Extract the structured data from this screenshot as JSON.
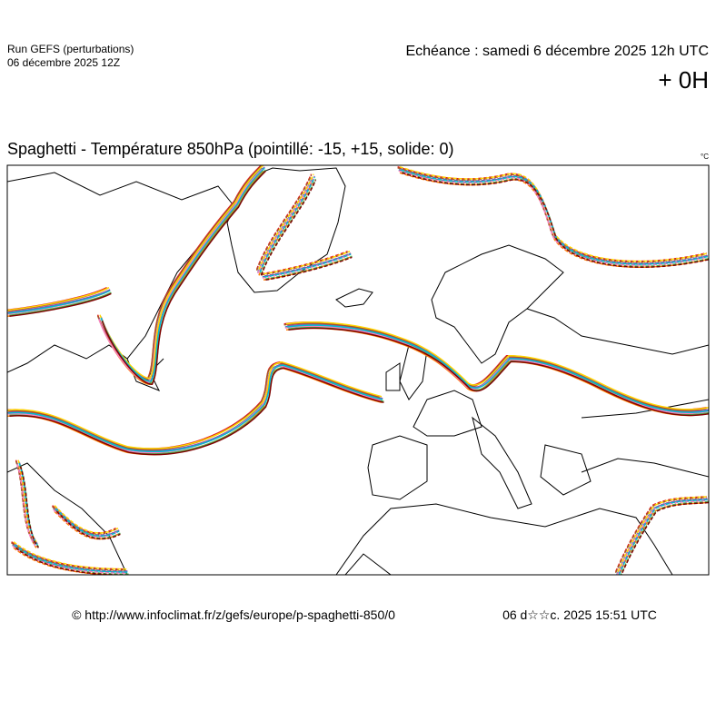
{
  "header": {
    "run": "Run GEFS (perturbations)",
    "run_date": "06 décembre 2025 12Z",
    "echeance": "Echéance : samedi 6 décembre 2025 12h UTC",
    "lead": "+ 0H"
  },
  "map": {
    "title": "Spaghetti - Température 850hPa (pointillé: -15, +15, solide: 0)",
    "unit": "°C"
  },
  "footer": {
    "url": "© http://www.infoclimat.fr/z/gefs/europe/p-spaghetti-850/0",
    "timestamp": "06 d☆☆c. 2025 15:51 UTC"
  }
}
